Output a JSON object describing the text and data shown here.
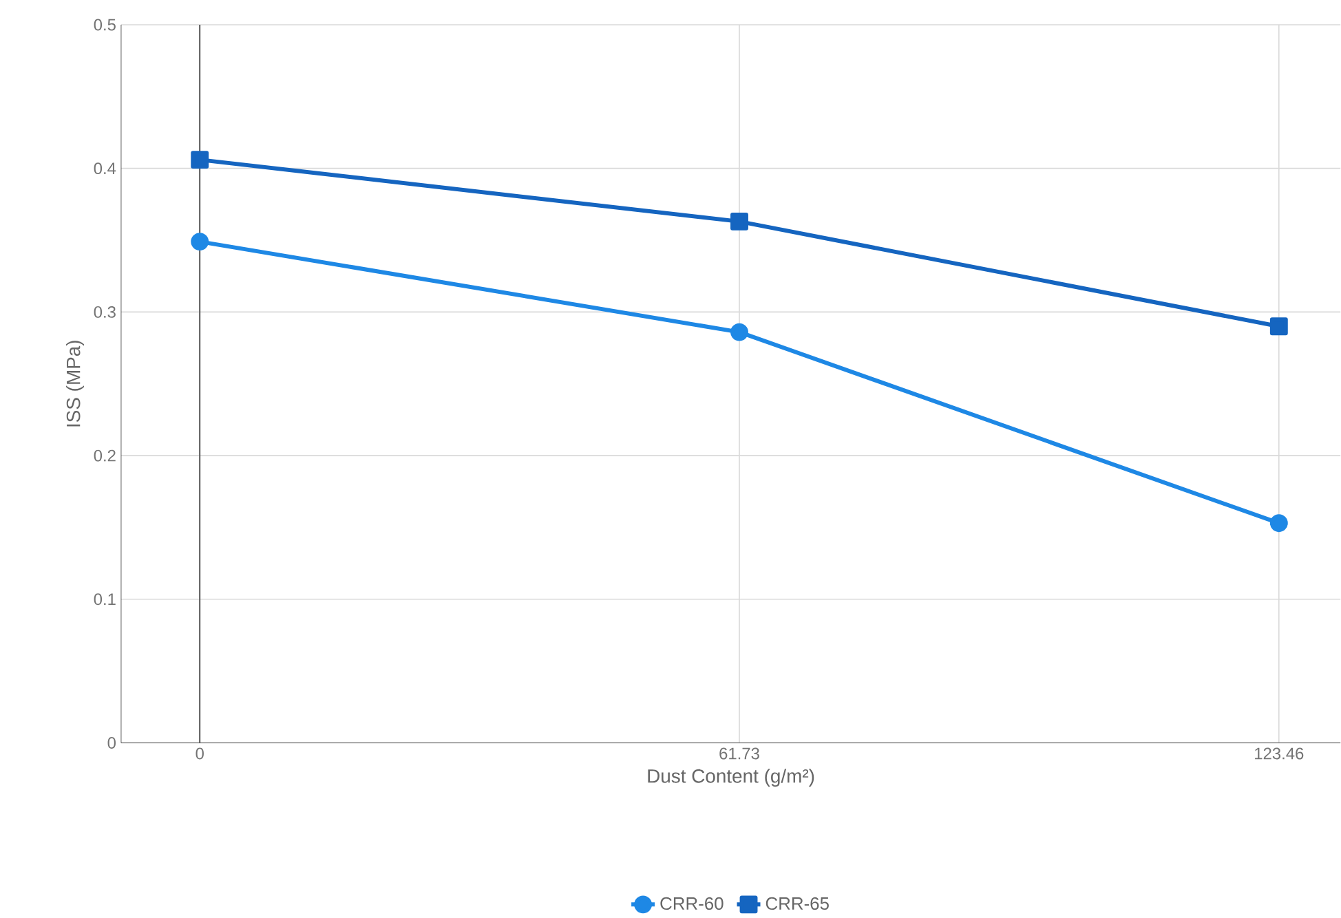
{
  "chart_data": {
    "type": "line",
    "xlabel": "Dust Content (g/m²)",
    "ylabel": "ISS (MPa)",
    "x": [
      0,
      61.73,
      123.46
    ],
    "series": [
      {
        "name": "CRR-60",
        "color": "#1e88e5",
        "marker": "circle",
        "values": [
          0.349,
          0.286,
          0.153
        ]
      },
      {
        "name": "CRR-65",
        "color": "#1565c0",
        "marker": "square",
        "values": [
          0.406,
          0.363,
          0.29
        ]
      }
    ],
    "xlim": [
      -9,
      130.5
    ],
    "ylim": [
      0,
      0.5
    ],
    "xticks": [
      0,
      61.73,
      123.46
    ],
    "yticks": [
      0,
      0.1,
      0.2,
      0.3,
      0.4,
      0.5
    ],
    "ref_lines": [
      {
        "axis": "x",
        "value": 0,
        "color": "#555555"
      }
    ],
    "grid": true,
    "legend": "bottom",
    "line_style": "solid"
  }
}
